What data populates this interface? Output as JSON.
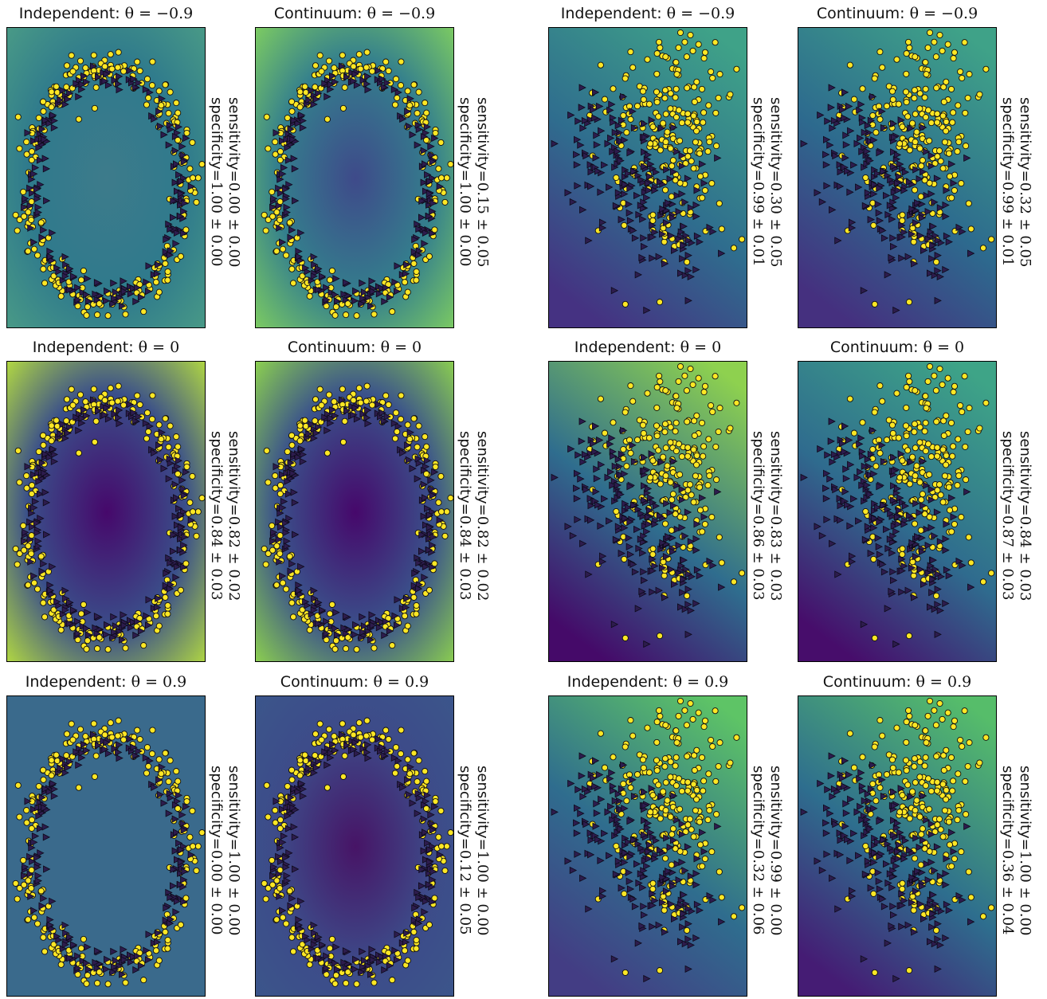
{
  "chart_data": [
    {
      "type": "scatter",
      "dataset": "rings",
      "title": "Independent: ",
      "theta": "θ = −0.9",
      "sensitivity": "0.00 ± 0.00",
      "specificity": "1.00 ± 0.00",
      "background_colors": [
        "#3d7b8b",
        "#2f7a8c",
        "#4a9b86"
      ]
    },
    {
      "type": "scatter",
      "dataset": "rings",
      "title": "Continuum: ",
      "theta": "θ = −0.9",
      "sensitivity": "0.15 ± 0.05",
      "specificity": "1.00 ± 0.00",
      "background_colors": [
        "#3e4a8a",
        "#347f8d",
        "#7fce60"
      ]
    },
    {
      "type": "scatter",
      "dataset": "moons",
      "title": "Independent: ",
      "theta": "θ = −0.9",
      "sensitivity": "0.30 ± 0.05",
      "specificity": "0.99 ± 0.01",
      "background_colors": [
        "#3fa288",
        "#2f6d8e",
        "#453282"
      ]
    },
    {
      "type": "scatter",
      "dataset": "moons",
      "title": "Continuum: ",
      "theta": "θ = −0.9",
      "sensitivity": "0.32 ± 0.05",
      "specificity": "0.99 ± 0.01",
      "background_colors": [
        "#3fa288",
        "#2d6a8e",
        "#45307f"
      ]
    },
    {
      "type": "scatter",
      "dataset": "rings",
      "title": "Independent: ",
      "theta": "θ = 0",
      "sensitivity": "0.82 ± 0.02",
      "specificity": "0.84 ± 0.03",
      "background_colors": [
        "#46086b",
        "#3a4f8a",
        "#b6dd3f"
      ]
    },
    {
      "type": "scatter",
      "dataset": "rings",
      "title": "Continuum: ",
      "theta": "θ = 0",
      "sensitivity": "0.82 ± 0.02",
      "specificity": "0.84 ± 0.03",
      "background_colors": [
        "#46086b",
        "#3a528b",
        "#8fd44d"
      ]
    },
    {
      "type": "scatter",
      "dataset": "moons",
      "title": "Independent: ",
      "theta": "θ = 0",
      "sensitivity": "0.83 ± 0.03",
      "specificity": "0.86 ± 0.03",
      "background_colors": [
        "#8ed14f",
        "#2f6d8e",
        "#450a69"
      ]
    },
    {
      "type": "scatter",
      "dataset": "moons",
      "title": "Continuum: ",
      "theta": "θ = 0",
      "sensitivity": "0.84 ± 0.03",
      "specificity": "0.87 ± 0.03",
      "background_colors": [
        "#3ea487",
        "#2f6b8e",
        "#470d6b"
      ]
    },
    {
      "type": "scatter",
      "dataset": "rings",
      "title": "Independent: ",
      "theta": "θ = 0.9",
      "sensitivity": "1.00 ± 0.00",
      "specificity": "0.00 ± 0.00",
      "background_colors": [
        "#3a6a8c",
        "#3a6a8c",
        "#3a6a8c"
      ]
    },
    {
      "type": "scatter",
      "dataset": "rings",
      "title": "Continuum: ",
      "theta": "θ = 0.9",
      "sensitivity": "1.00 ± 0.00",
      "specificity": "0.12 ± 0.05",
      "background_colors": [
        "#471466",
        "#3d4b89",
        "#3b568b"
      ]
    },
    {
      "type": "scatter",
      "dataset": "moons",
      "title": "Independent: ",
      "theta": "θ = 0.9",
      "sensitivity": "0.99 ± 0.00",
      "specificity": "0.32 ± 0.06",
      "background_colors": [
        "#5ec466",
        "#2f6d8e",
        "#433d84"
      ]
    },
    {
      "type": "scatter",
      "dataset": "moons",
      "title": "Continuum: ",
      "theta": "θ = 0.9",
      "sensitivity": "1.00 ± 0.00",
      "specificity": "0.36 ± 0.04",
      "background_colors": [
        "#56bd6a",
        "#2e6e8e",
        "#451c74"
      ]
    }
  ],
  "labels": {
    "sensitivity": "sensitivity=",
    "specificity": "specificity="
  },
  "markers": {
    "class_a_color": "#fde725",
    "class_b_color": "#2d1c4d"
  }
}
